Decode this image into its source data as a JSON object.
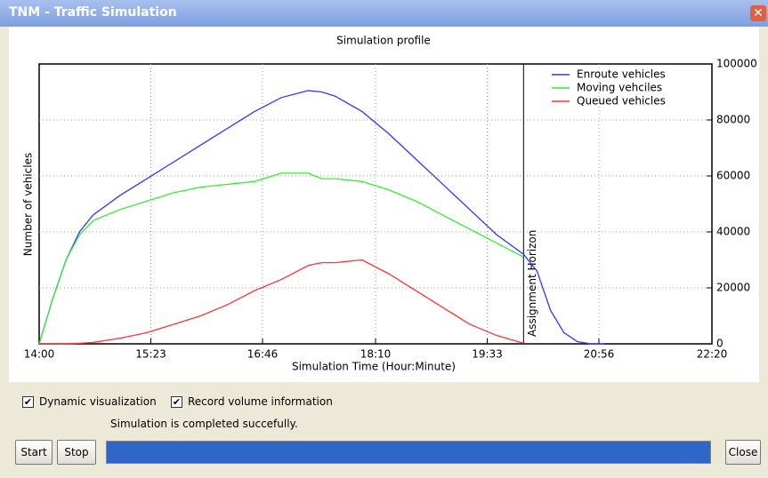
{
  "window": {
    "title": "TNM - Traffic Simulation"
  },
  "chart_data": {
    "type": "line",
    "title": "Simulation profile",
    "x_label": "Simulation Time (Hour:Minute)",
    "y_label": "Number of vehicles",
    "x": [
      840,
      850,
      860,
      870,
      880,
      900,
      920,
      940,
      960,
      980,
      1000,
      1020,
      1040,
      1050,
      1060,
      1080,
      1100,
      1120,
      1140,
      1160,
      1180,
      1200,
      1210,
      1220,
      1230,
      1240,
      1250,
      1260
    ],
    "series": [
      {
        "name": "Enroute vehicles",
        "color": "#3333ff",
        "values": [
          0,
          16000,
          30000,
          40000,
          46000,
          53000,
          59000,
          65000,
          71000,
          77000,
          83000,
          88000,
          90500,
          90000,
          88500,
          83000,
          75000,
          66000,
          57000,
          48000,
          39000,
          32000,
          26000,
          12000,
          4000,
          800,
          0,
          0
        ]
      },
      {
        "name": "Moving vehciles",
        "color": "#33ee33",
        "values": [
          0,
          16000,
          30000,
          39000,
          44000,
          48000,
          51000,
          54000,
          56000,
          57000,
          58000,
          61000,
          61000,
          59000,
          59000,
          58000,
          55000,
          51000,
          46000,
          41000,
          36000,
          31000,
          null,
          null,
          null,
          null,
          null,
          null
        ]
      },
      {
        "name": "Queued vehicles",
        "color": "#ff3333",
        "values": [
          0,
          0,
          0,
          200,
          500,
          2000,
          4000,
          7000,
          10000,
          14000,
          19000,
          23000,
          28000,
          29000,
          29000,
          30000,
          25000,
          19000,
          13000,
          7000,
          3000,
          200,
          null,
          null,
          null,
          null,
          null,
          null
        ]
      }
    ],
    "xlim": [
      840,
      1340
    ],
    "xticks": [
      {
        "value": 840,
        "label": "14:00"
      },
      {
        "value": 923,
        "label": "15:23"
      },
      {
        "value": 1006,
        "label": "16:46"
      },
      {
        "value": 1090,
        "label": "18:10"
      },
      {
        "value": 1173,
        "label": "19:33"
      },
      {
        "value": 1256,
        "label": "20:56"
      },
      {
        "value": 1340,
        "label": "22:20"
      }
    ],
    "ylim": [
      0,
      100000
    ],
    "yticks": [
      0,
      20000,
      40000,
      60000,
      80000,
      100000
    ],
    "grid": true,
    "legend": "top-right",
    "annotations": [
      {
        "x": 1200,
        "label": "Assignment Horizon"
      }
    ]
  },
  "controls": {
    "checkboxes": [
      {
        "label": "Dynamic visualization",
        "checked": true
      },
      {
        "label": "Record volume information",
        "checked": true
      }
    ],
    "status": "Simulation is completed succefully.",
    "buttons": [
      "Start",
      "Stop",
      "Close"
    ]
  }
}
